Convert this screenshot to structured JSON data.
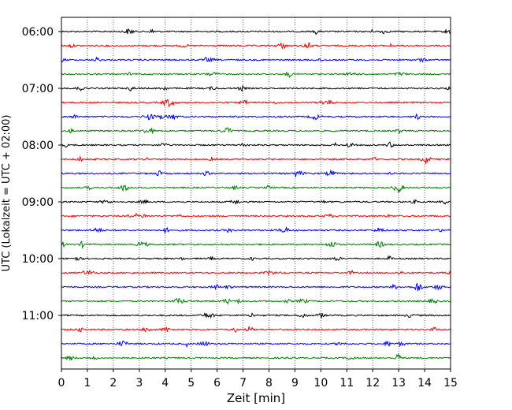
{
  "chart_data": {
    "type": "line",
    "title": "",
    "xlabel": "Zeit  [min]",
    "ylabel": "UTC (Lokalzeit = UTC + 02:00)",
    "xlim": [
      0,
      15
    ],
    "x_ticks": [
      "0",
      "1",
      "2",
      "3",
      "4",
      "5",
      "6",
      "7",
      "8",
      "9",
      "10",
      "11",
      "12",
      "13",
      "14",
      "15"
    ],
    "y_ticks": [
      "06:00",
      "07:00",
      "08:00",
      "09:00",
      "10:00",
      "11:00"
    ],
    "grid": "vertical dotted",
    "legend": "none",
    "trace_colors": [
      "#000000",
      "#ff0000",
      "#0000ff",
      "#008000"
    ],
    "traces": [
      {
        "start": "06:00",
        "color": "#000000"
      },
      {
        "start": "06:15",
        "color": "#ff0000"
      },
      {
        "start": "06:30",
        "color": "#0000ff"
      },
      {
        "start": "06:45",
        "color": "#008000"
      },
      {
        "start": "07:00",
        "color": "#000000"
      },
      {
        "start": "07:15",
        "color": "#ff0000"
      },
      {
        "start": "07:30",
        "color": "#0000ff"
      },
      {
        "start": "07:45",
        "color": "#008000"
      },
      {
        "start": "08:00",
        "color": "#000000"
      },
      {
        "start": "08:15",
        "color": "#ff0000"
      },
      {
        "start": "08:30",
        "color": "#0000ff"
      },
      {
        "start": "08:45",
        "color": "#008000"
      },
      {
        "start": "09:00",
        "color": "#000000"
      },
      {
        "start": "09:15",
        "color": "#ff0000"
      },
      {
        "start": "09:30",
        "color": "#0000ff"
      },
      {
        "start": "09:45",
        "color": "#008000"
      },
      {
        "start": "10:00",
        "color": "#000000"
      },
      {
        "start": "10:15",
        "color": "#ff0000"
      },
      {
        "start": "10:30",
        "color": "#0000ff"
      },
      {
        "start": "10:45",
        "color": "#008000"
      },
      {
        "start": "11:00",
        "color": "#000000"
      },
      {
        "start": "11:15",
        "color": "#ff0000"
      },
      {
        "start": "11:30",
        "color": "#0000ff"
      },
      {
        "start": "11:45",
        "color": "#008000"
      }
    ]
  }
}
